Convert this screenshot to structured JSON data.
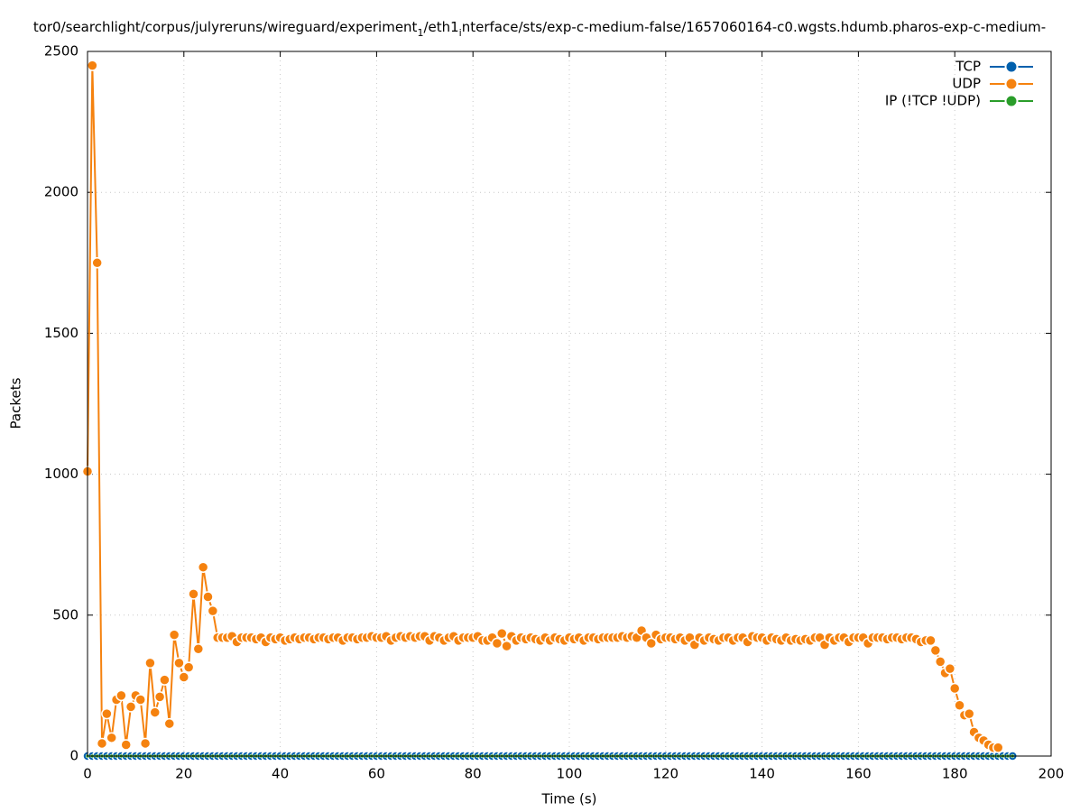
{
  "chart_data": {
    "type": "line",
    "title": [
      {
        "text": "tor0/searchlight/corpus/julyreruns/wireguard/experiment",
        "subscript": false
      },
      {
        "text": "1",
        "subscript": true
      },
      {
        "text": "/eth1",
        "subscript": false
      },
      {
        "text": "i",
        "subscript": true
      },
      {
        "text": "nterface/sts/exp-c-medium-false/1657060164-c0.wgsts.hdumb.pharos-exp-c-medium-",
        "subscript": false
      }
    ],
    "xlabel": "Time (s)",
    "ylabel": "Packets",
    "xlim": [
      0,
      200
    ],
    "xticks": [
      0,
      20,
      40,
      60,
      80,
      100,
      120,
      140,
      160,
      180,
      200
    ],
    "ylim": [
      0,
      2500
    ],
    "yticks": [
      0,
      500,
      1000,
      1500,
      2000,
      2500
    ],
    "grid": true,
    "legend": "top-right",
    "x": [
      0,
      1,
      2,
      3,
      4,
      5,
      6,
      7,
      8,
      9,
      10,
      11,
      12,
      13,
      14,
      15,
      16,
      17,
      18,
      19,
      20,
      21,
      22,
      23,
      24,
      25,
      26,
      27,
      28,
      29,
      30,
      31,
      32,
      33,
      34,
      35,
      36,
      37,
      38,
      39,
      40,
      41,
      42,
      43,
      44,
      45,
      46,
      47,
      48,
      49,
      50,
      51,
      52,
      53,
      54,
      55,
      56,
      57,
      58,
      59,
      60,
      61,
      62,
      63,
      64,
      65,
      66,
      67,
      68,
      69,
      70,
      71,
      72,
      73,
      74,
      75,
      76,
      77,
      78,
      79,
      80,
      81,
      82,
      83,
      84,
      85,
      86,
      87,
      88,
      89,
      90,
      91,
      92,
      93,
      94,
      95,
      96,
      97,
      98,
      99,
      100,
      101,
      102,
      103,
      104,
      105,
      106,
      107,
      108,
      109,
      110,
      111,
      112,
      113,
      114,
      115,
      116,
      117,
      118,
      119,
      120,
      121,
      122,
      123,
      124,
      125,
      126,
      127,
      128,
      129,
      130,
      131,
      132,
      133,
      134,
      135,
      136,
      137,
      138,
      139,
      140,
      141,
      142,
      143,
      144,
      145,
      146,
      147,
      148,
      149,
      150,
      151,
      152,
      153,
      154,
      155,
      156,
      157,
      158,
      159,
      160,
      161,
      162,
      163,
      164,
      165,
      166,
      167,
      168,
      169,
      170,
      171,
      172,
      173,
      174,
      175,
      176,
      177,
      178,
      179,
      180,
      181,
      182,
      183,
      184,
      185,
      186,
      187,
      188,
      189,
      190,
      191,
      192
    ],
    "series": [
      {
        "name": "TCP",
        "color": "#0060ad",
        "marker_size": 5,
        "values": [
          0,
          0,
          0,
          0,
          0,
          0,
          0,
          0,
          0,
          0,
          0,
          0,
          0,
          0,
          0,
          0,
          0,
          0,
          0,
          0,
          0,
          0,
          0,
          0,
          0,
          0,
          0,
          0,
          0,
          0,
          0,
          0,
          0,
          0,
          0,
          0,
          0,
          0,
          0,
          0,
          0,
          0,
          0,
          0,
          0,
          0,
          0,
          0,
          0,
          0,
          0,
          0,
          0,
          0,
          0,
          0,
          0,
          0,
          0,
          0,
          0,
          0,
          0,
          0,
          0,
          0,
          0,
          0,
          0,
          0,
          0,
          0,
          0,
          0,
          0,
          0,
          0,
          0,
          0,
          0,
          0,
          0,
          0,
          0,
          0,
          0,
          0,
          0,
          0,
          0,
          0,
          0,
          0,
          0,
          0,
          0,
          0,
          0,
          0,
          0,
          0,
          0,
          0,
          0,
          0,
          0,
          0,
          0,
          0,
          0,
          0,
          0,
          0,
          0,
          0,
          0,
          0,
          0,
          0,
          0,
          0,
          0,
          0,
          0,
          0,
          0,
          0,
          0,
          0,
          0,
          0,
          0,
          0,
          0,
          0,
          0,
          0,
          0,
          0,
          0,
          0,
          0,
          0,
          0,
          0,
          0,
          0,
          0,
          0,
          0,
          0,
          0,
          0,
          0,
          0,
          0,
          0,
          0,
          0,
          0,
          0,
          0,
          0,
          0,
          0,
          0,
          0,
          0,
          0,
          0,
          0,
          0,
          0,
          0,
          0,
          0,
          0,
          0,
          0,
          0,
          0,
          0,
          0,
          0,
          0,
          0,
          0,
          0,
          0,
          0,
          0,
          0,
          0
        ]
      },
      {
        "name": "UDP",
        "color": "#f5820f",
        "marker_size": 5.5,
        "values": [
          1010,
          2450,
          1750,
          45,
          150,
          65,
          200,
          215,
          40,
          175,
          215,
          200,
          45,
          330,
          155,
          210,
          270,
          115,
          430,
          330,
          280,
          315,
          575,
          380,
          670,
          565,
          515,
          420,
          420,
          420,
          425,
          405,
          420,
          420,
          420,
          415,
          420,
          405,
          420,
          415,
          420,
          410,
          415,
          420,
          415,
          420,
          420,
          415,
          420,
          420,
          415,
          420,
          420,
          410,
          420,
          420,
          415,
          420,
          420,
          425,
          420,
          420,
          425,
          410,
          420,
          425,
          420,
          425,
          420,
          425,
          425,
          410,
          425,
          420,
          410,
          420,
          425,
          410,
          420,
          420,
          420,
          425,
          410,
          410,
          420,
          400,
          435,
          390,
          425,
          410,
          420,
          415,
          420,
          415,
          410,
          420,
          410,
          420,
          415,
          410,
          420,
          415,
          420,
          410,
          420,
          420,
          415,
          420,
          420,
          420,
          420,
          425,
          420,
          425,
          420,
          445,
          420,
          400,
          430,
          415,
          420,
          420,
          415,
          420,
          410,
          420,
          395,
          420,
          410,
          420,
          415,
          410,
          420,
          420,
          410,
          420,
          420,
          405,
          425,
          420,
          420,
          410,
          420,
          415,
          410,
          420,
          410,
          415,
          410,
          415,
          410,
          420,
          420,
          395,
          420,
          410,
          420,
          420,
          405,
          420,
          420,
          420,
          400,
          420,
          420,
          420,
          415,
          420,
          420,
          415,
          420,
          420,
          415,
          405,
          410,
          410,
          375,
          335,
          295,
          310,
          240,
          180,
          145,
          150,
          85,
          65,
          55,
          40,
          30,
          30,
          null,
          null,
          null
        ]
      },
      {
        "name": "IP (!TCP  !UDP)",
        "color": "#2a9d2a",
        "marker_size": 2,
        "values": [
          0,
          0,
          0,
          0,
          0,
          0,
          0,
          0,
          0,
          0,
          0,
          0,
          0,
          0,
          0,
          0,
          0,
          0,
          0,
          0,
          0,
          0,
          0,
          0,
          0,
          0,
          0,
          0,
          0,
          0,
          0,
          0,
          0,
          0,
          0,
          0,
          0,
          0,
          0,
          0,
          0,
          0,
          0,
          0,
          0,
          0,
          0,
          0,
          0,
          0,
          0,
          0,
          0,
          0,
          0,
          0,
          0,
          0,
          0,
          0,
          0,
          0,
          0,
          0,
          0,
          0,
          0,
          0,
          0,
          0,
          0,
          0,
          0,
          0,
          0,
          0,
          0,
          0,
          0,
          0,
          0,
          0,
          0,
          0,
          0,
          0,
          0,
          0,
          0,
          0,
          0,
          0,
          0,
          0,
          0,
          0,
          0,
          0,
          0,
          0,
          0,
          0,
          0,
          0,
          0,
          0,
          0,
          0,
          0,
          0,
          0,
          0,
          0,
          0,
          0,
          0,
          0,
          0,
          0,
          0,
          0,
          0,
          0,
          0,
          0,
          0,
          0,
          0,
          0,
          0,
          0,
          0,
          0,
          0,
          0,
          0,
          0,
          0,
          0,
          0,
          0,
          0,
          0,
          0,
          0,
          0,
          0,
          0,
          0,
          0,
          0,
          0,
          0,
          0,
          0,
          0,
          0,
          0,
          0,
          0,
          0,
          0,
          0,
          0,
          0,
          0,
          0,
          0,
          0,
          0,
          0,
          0,
          0,
          0,
          0,
          0,
          0,
          0,
          0,
          0,
          0,
          0,
          0,
          0,
          0,
          0,
          0,
          0,
          0,
          0,
          0,
          0,
          0
        ]
      }
    ]
  }
}
